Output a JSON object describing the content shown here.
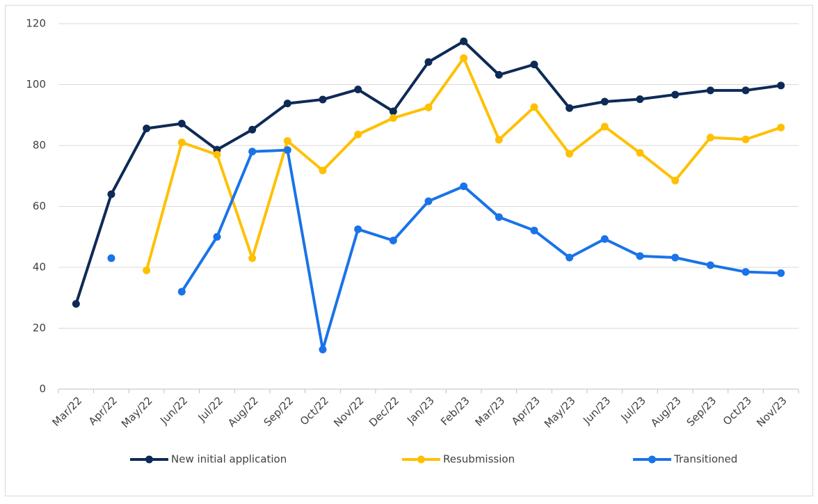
{
  "chart_data": {
    "type": "line",
    "categories": [
      "Mar/22",
      "Apr/22",
      "May/22",
      "Jun/22",
      "Jul/22",
      "Aug/22",
      "Sep/22",
      "Oct/22",
      "Nov/22",
      "Dec/22",
      "Jan/23",
      "Feb/23",
      "Mar/23",
      "Apr/23",
      "May/23",
      "Jun/23",
      "Jul/23",
      "Aug/23",
      "Sep/23",
      "Oct/23",
      "Nov/23"
    ],
    "series": [
      {
        "name": "New initial application",
        "color": "#0e2a56",
        "values": [
          28,
          64,
          85.6,
          87.2,
          78.6,
          85.2,
          93.8,
          95.1,
          98.4,
          91.2,
          107.4,
          114.2,
          103.2,
          106.6,
          92.3,
          94.4,
          95.2,
          96.7,
          98.1,
          98.1,
          99.7
        ]
      },
      {
        "name": "Resubmission",
        "color": "#ffc000",
        "values": [
          null,
          null,
          39,
          81,
          77,
          43,
          81.5,
          71.8,
          83.6,
          89,
          92.5,
          108.7,
          81.9,
          92.6,
          77.3,
          86.2,
          77.6,
          68.5,
          82.6,
          82,
          85.9
        ]
      },
      {
        "name": "Transitioned",
        "color": "#1a73e8",
        "values": [
          null,
          43,
          null,
          32,
          50,
          78,
          78.5,
          13,
          52.5,
          48.8,
          61.7,
          66.6,
          56.5,
          52.1,
          43.2,
          49.3,
          43.7,
          43.2,
          40.7,
          38.5,
          38.1
        ]
      }
    ],
    "ylim": [
      0,
      120
    ],
    "yticks": [
      0,
      20,
      40,
      60,
      80,
      100,
      120
    ],
    "grid": true,
    "legend": "bottom"
  }
}
